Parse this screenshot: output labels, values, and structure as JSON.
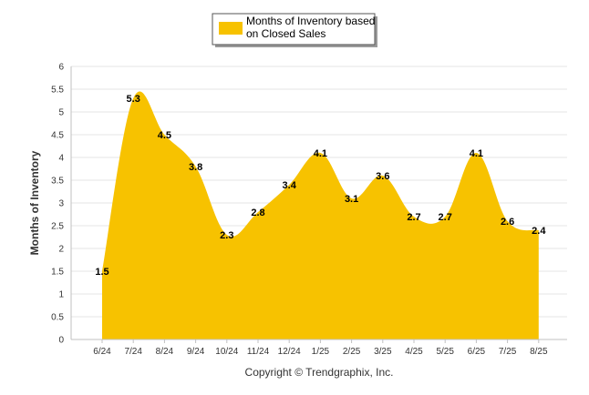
{
  "chart_data": {
    "type": "area",
    "title": "",
    "xlabel": "",
    "ylabel": "Months of Inventory",
    "ylim": [
      0,
      6
    ],
    "yticks": [
      "0",
      "0.5",
      "1",
      "1.5",
      "2",
      "2.5",
      "3",
      "3.5",
      "4",
      "4.5",
      "5",
      "5.5",
      "6"
    ],
    "categories": [
      "6/24",
      "7/24",
      "8/24",
      "9/24",
      "10/24",
      "11/24",
      "12/24",
      "1/25",
      "2/25",
      "3/25",
      "4/25",
      "5/25",
      "6/25",
      "7/25",
      "8/25"
    ],
    "series": [
      {
        "name": "Months of Inventory based on Closed Sales",
        "values": [
          1.5,
          5.3,
          4.5,
          3.8,
          2.3,
          2.8,
          3.4,
          4.1,
          3.1,
          3.6,
          2.7,
          2.7,
          4.1,
          2.6,
          2.4
        ],
        "labels": [
          "1.5",
          "5.3",
          "4.5",
          "3.8",
          "2.3",
          "2.8",
          "3.4",
          "4.1",
          "3.1",
          "3.6",
          "2.7",
          "2.7",
          "4.1",
          "2.6",
          "2.4"
        ]
      }
    ],
    "legend": {
      "position": "top-center",
      "line1": "Months of Inventory based",
      "line2": "on Closed Sales"
    },
    "grid": true,
    "colors": {
      "fill": "#F7C200",
      "grid": "#E6E6E6",
      "axis": "#C0C0C0"
    }
  },
  "footer": {
    "copyright": "Copyright © Trendgraphix, Inc."
  }
}
